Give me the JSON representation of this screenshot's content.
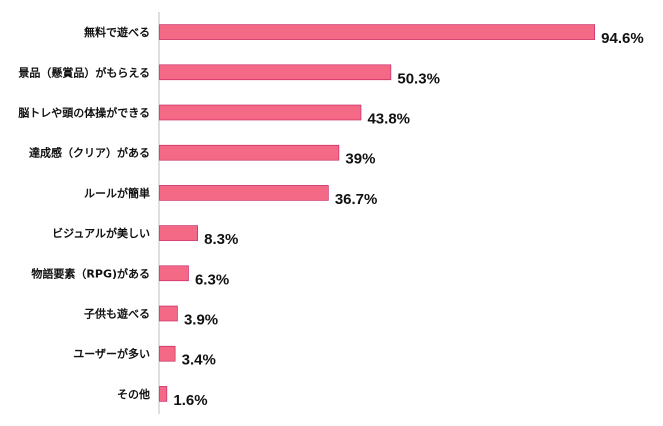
{
  "chart_data": {
    "type": "bar",
    "orientation": "horizontal",
    "categories": [
      "無料で遊べる",
      "景品（懸賞品）がもらえる",
      "脳トレや頭の体操ができる",
      "達成感（クリア）がある",
      "ルールが簡単",
      "ビジュアルが美しい",
      "物語要素（RPG)がある",
      "子供も遊べる",
      "ユーザーが多い",
      "その他"
    ],
    "values": [
      94.6,
      50.3,
      43.8,
      39,
      36.7,
      8.3,
      6.3,
      3.9,
      3.4,
      1.6
    ],
    "value_labels": [
      "94.6%",
      "50.3%",
      "43.8%",
      "39%",
      "36.7%",
      "8.3%",
      "6.3%",
      "3.9%",
      "3.4%",
      "1.6%"
    ],
    "xlim": [
      0,
      100
    ],
    "bar_color": "#f46a86",
    "bar_edge_color": "#c2185b",
    "axis_color": "#bfbfbf",
    "grid": false,
    "legend": "none"
  }
}
